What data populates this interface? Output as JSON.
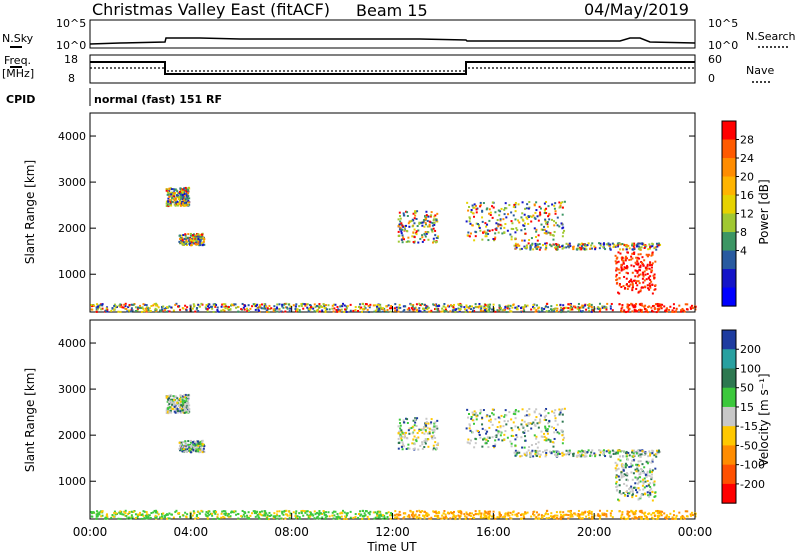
{
  "header": {
    "title": "Christmas Valley East (fitACF)",
    "beam": "Beam 15",
    "date": "04/May/2019"
  },
  "top_panels": {
    "nsky_label": "N.Sky",
    "nsky_ticks": [
      "10^5",
      "10^0"
    ],
    "nsearch_label": "N.Search",
    "nsearch_ticks": [
      "10^5",
      "10^0"
    ],
    "freq_label": "Freq.",
    "freq_unit": "[MHz]",
    "freq_ticks": [
      "18",
      "8"
    ],
    "nave_label": "Nave",
    "nave_ticks": [
      "60",
      "0"
    ],
    "cpid_label": "CPID",
    "cpid_text": "normal (fast) 151 RF"
  },
  "chart_data": [
    {
      "type": "heatmap",
      "name": "power",
      "ylabel": "Slant Range [km]",
      "yticks": [
        "4000",
        "3000",
        "2000",
        "1000"
      ],
      "ytick_values": [
        4000,
        3000,
        2000,
        1000
      ],
      "ylim": [
        180,
        4500
      ],
      "xlim": [
        0,
        24
      ],
      "colorbar_label": "Power [dB]",
      "colorbar_ticks": [
        "28",
        "24",
        "20",
        "16",
        "12",
        "8",
        "4"
      ],
      "colorbar_colors": [
        "#ff0000",
        "#ff5a00",
        "#ff8c00",
        "#ffb400",
        "#e6d200",
        "#a0c832",
        "#3c9664",
        "#285aa0",
        "#1414c8",
        "#0000ff"
      ]
    },
    {
      "type": "heatmap",
      "name": "velocity",
      "ylabel": "Slant Range [km]",
      "yticks": [
        "4000",
        "3000",
        "2000",
        "1000"
      ],
      "ytick_values": [
        4000,
        3000,
        2000,
        1000
      ],
      "ylim": [
        180,
        4500
      ],
      "xlim": [
        0,
        24
      ],
      "colorbar_label": "Velocity [m s⁻¹]",
      "colorbar_ticks": [
        "200",
        "100",
        "50",
        "15",
        "-15",
        "-50",
        "-100",
        "-200"
      ],
      "colorbar_colors": [
        "#1e3ca0",
        "#28a0a0",
        "#2d7850",
        "#3cc83c",
        "#c8c8c8",
        "#ffc800",
        "#ff8c00",
        "#ff5000",
        "#ff0000"
      ]
    }
  ],
  "x_axis": {
    "ticks": [
      "00:00",
      "04:00",
      "08:00",
      "12:00",
      "16:00",
      "20:00",
      "00:00"
    ],
    "tick_values": [
      0,
      4,
      8,
      12,
      16,
      20,
      24
    ],
    "label": "Time UT"
  }
}
